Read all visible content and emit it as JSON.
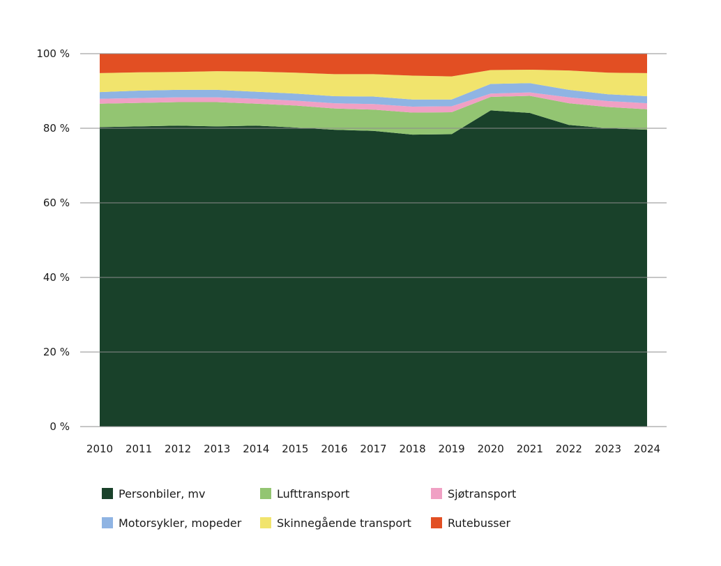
{
  "chart_data": {
    "type": "area",
    "stacked": true,
    "title": "",
    "xlabel": "",
    "ylabel": "",
    "ylim": [
      0,
      100
    ],
    "y_ticks": [
      {
        "value": 0,
        "label": "0 %"
      },
      {
        "value": 20,
        "label": "20 %"
      },
      {
        "value": 40,
        "label": "40 %"
      },
      {
        "value": 60,
        "label": "60 %"
      },
      {
        "value": 80,
        "label": "80 %"
      },
      {
        "value": 100,
        "label": "100 %"
      }
    ],
    "x": [
      "2010",
      "2011",
      "2012",
      "2013",
      "2014",
      "2015",
      "2016",
      "2017",
      "2018",
      "2019",
      "2020",
      "2021",
      "2022",
      "2023",
      "2024"
    ],
    "legend_position": "bottom",
    "series": [
      {
        "name": "Personbiler, mv",
        "color": "#19412a",
        "values": [
          80.3,
          80.5,
          80.7,
          80.5,
          80.7,
          80.2,
          79.6,
          79.3,
          78.3,
          78.4,
          84.8,
          84.1,
          80.9,
          80.0,
          79.6
        ]
      },
      {
        "name": "Lufttransport",
        "color": "#93c572",
        "values": [
          6.3,
          6.3,
          6.3,
          6.5,
          5.9,
          5.9,
          5.7,
          5.7,
          5.9,
          5.9,
          3.6,
          4.6,
          5.8,
          5.7,
          5.5
        ]
      },
      {
        "name": "Sjøtransport",
        "color": "#f0a0c4",
        "values": [
          1.3,
          1.3,
          1.3,
          1.3,
          1.3,
          1.3,
          1.4,
          1.5,
          1.6,
          1.6,
          0.9,
          0.9,
          1.6,
          1.6,
          1.6
        ]
      },
      {
        "name": "Motorsykler, mopeder",
        "color": "#8fb4e3",
        "values": [
          1.8,
          2.0,
          2.0,
          2.0,
          1.9,
          1.9,
          1.9,
          2.0,
          1.9,
          1.8,
          2.6,
          2.5,
          2.0,
          1.8,
          1.9
        ]
      },
      {
        "name": "Skinnegående transport",
        "color": "#f1e46d",
        "values": [
          5.1,
          4.9,
          4.8,
          5.0,
          5.4,
          5.6,
          5.9,
          6.0,
          6.4,
          6.2,
          3.7,
          3.6,
          5.2,
          5.8,
          6.2
        ]
      },
      {
        "name": "Rutebusser",
        "color": "#e24f23",
        "values": [
          5.2,
          5.0,
          4.9,
          4.7,
          4.8,
          5.1,
          5.5,
          5.5,
          5.9,
          6.1,
          4.4,
          4.3,
          4.5,
          5.1,
          5.2
        ]
      }
    ]
  }
}
